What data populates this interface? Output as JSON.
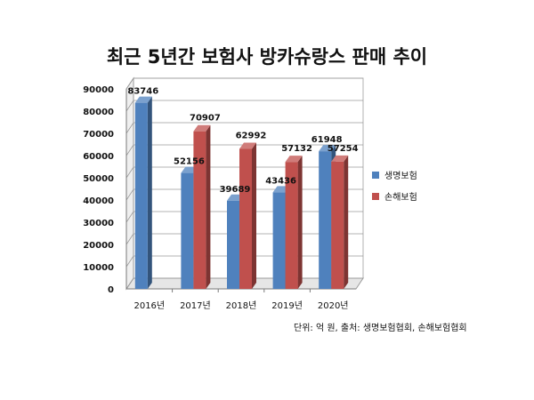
{
  "chart_data": {
    "type": "bar",
    "title": "최근 5년간 보험사 방카슈랑스 판매 추이",
    "categories": [
      "2016년",
      "2017년",
      "2018년",
      "2019년",
      "2020년"
    ],
    "series": [
      {
        "name": "생명보험",
        "color": "#4F81BD",
        "values": [
          83746,
          52156,
          39689,
          43436,
          61948
        ]
      },
      {
        "name": "손해보험",
        "color": "#C0504D",
        "values": [
          null,
          70907,
          62992,
          57132,
          57254
        ]
      }
    ],
    "ylim": [
      0,
      90000
    ],
    "yticks": [
      0,
      10000,
      20000,
      30000,
      40000,
      50000,
      60000,
      70000,
      80000,
      90000
    ],
    "grid": true,
    "legend": "right",
    "style": "3d"
  },
  "source_note": "단위: 억 원, 출처: 생명보험협회, 손해보험협회"
}
